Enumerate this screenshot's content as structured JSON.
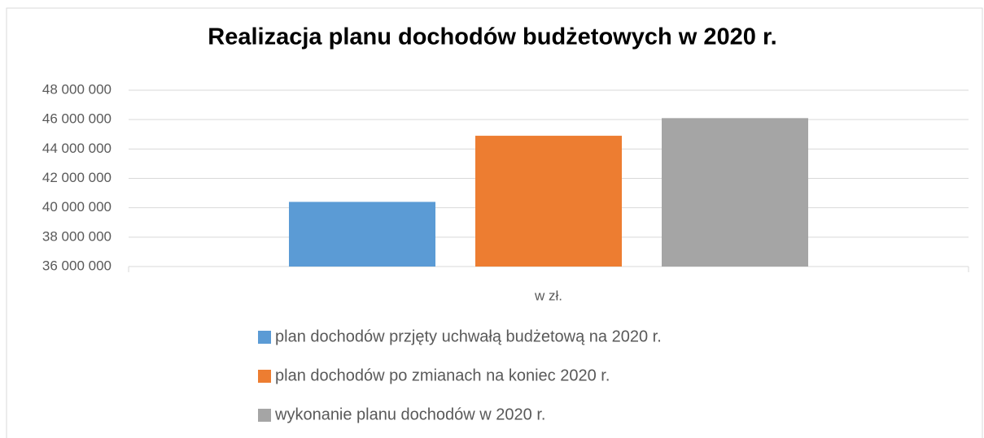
{
  "chart_data": {
    "type": "bar",
    "title": "Realizacja planu dochodów budżetowych w 2020 r.",
    "categories": [
      "w zł."
    ],
    "series": [
      {
        "name": "plan dochodów przjęty uchwałą budżetową na 2020 r.",
        "color": "#5b9bd5",
        "values": [
          40400000
        ]
      },
      {
        "name": "plan dochodów po zmianach na koniec 2020 r.",
        "color": "#ed7d31",
        "values": [
          44900000
        ]
      },
      {
        "name": "wykonanie planu dochodów w 2020 r.",
        "color": "#a5a5a5",
        "values": [
          46100000
        ]
      }
    ],
    "ylim": [
      36000000,
      48000000
    ],
    "yticks": [
      {
        "value": 36000000,
        "label": "36 000 000"
      },
      {
        "value": 38000000,
        "label": "38 000 000"
      },
      {
        "value": 40000000,
        "label": "40 000 000"
      },
      {
        "value": 42000000,
        "label": "42 000 000"
      },
      {
        "value": 44000000,
        "label": "44 000 000"
      },
      {
        "value": 46000000,
        "label": "46 000 000"
      },
      {
        "value": 48000000,
        "label": "48 000 000"
      }
    ],
    "grid": true,
    "legend": "bottom"
  }
}
